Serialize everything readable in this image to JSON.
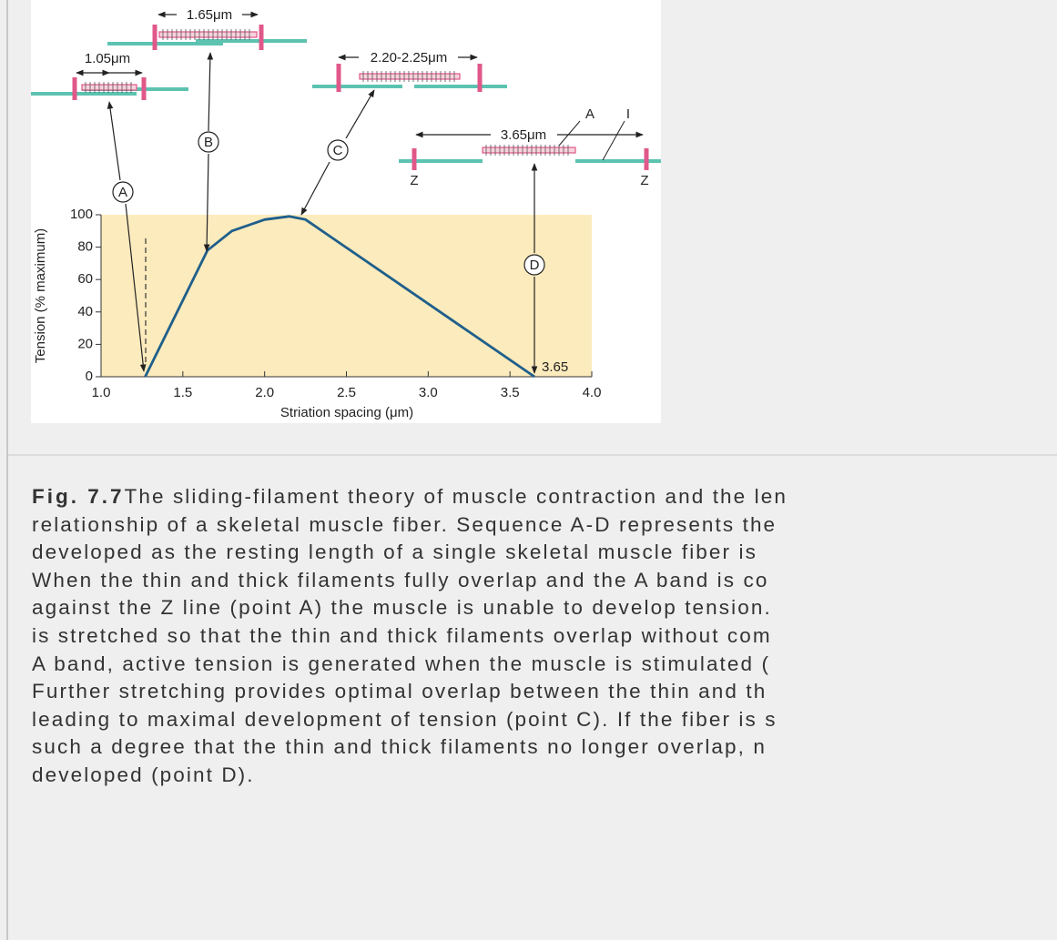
{
  "chart_data": {
    "type": "line",
    "x": [
      1.27,
      1.65,
      1.8,
      2.0,
      2.15,
      2.25,
      3.65
    ],
    "values": [
      0,
      78,
      90,
      97,
      99,
      97,
      0
    ],
    "color": "#1f5f8b",
    "xlabel": "Striation spacing (μm)",
    "ylabel": "Tension (% maximum)",
    "xlim": [
      1.0,
      4.0
    ],
    "ylim": [
      0,
      100
    ],
    "xticks": [
      {
        "value": 1,
        "label": "1.0"
      },
      1.5,
      {
        "value": 2,
        "label": "2.0"
      },
      2.5,
      {
        "value": 3,
        "label": "3.0"
      },
      3.5,
      {
        "value": 4,
        "label": "4.0"
      }
    ],
    "yticks": [
      0,
      20,
      40,
      60,
      80,
      100
    ],
    "annotations": [
      "1.05μm",
      "1.65μm",
      "2.20-2.25μm",
      "3.65μm",
      "A",
      "I",
      "Z",
      "Z",
      "A",
      "B",
      "C",
      "D",
      "3.65"
    ]
  },
  "caption": {
    "label": "Fig. 7.7",
    "lines": [
      "The sliding-filament theory of muscle contraction and the len",
      "relationship of a skeletal muscle fiber. Sequence A-D represents the",
      "developed as the resting length of a single skeletal muscle fiber is",
      "When the thin and thick filaments fully overlap and the A band is co",
      "against the Z line (point A) the muscle is unable to develop tension.",
      "is stretched so that the thin and thick filaments overlap without com",
      "A band, active tension is generated when the muscle is stimulated (",
      "Further stretching provides optimal overlap between the thin and th",
      "leading to maximal development of tension (point C). If the fiber is s",
      "such a degree that the thin and thick filaments no longer overlap, n",
      "developed (point D)."
    ]
  }
}
